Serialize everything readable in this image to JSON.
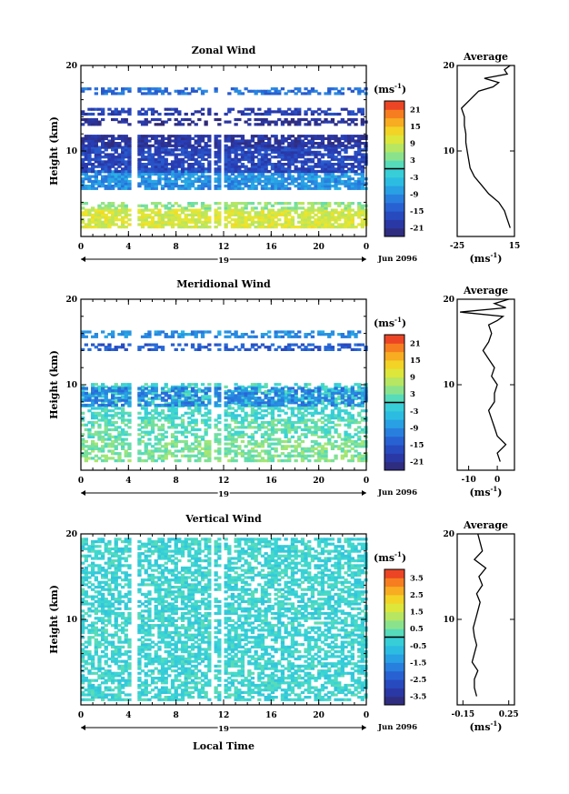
{
  "figure": {
    "xlabel": "Local Time",
    "day_label": "19",
    "month_label": "Jun 2096"
  },
  "chart_data": [
    {
      "type": "heatmap",
      "id": "zonal",
      "title": "Zonal Wind",
      "ylabel": "Height (km)",
      "xlabel": "",
      "x_ticks": [
        "0",
        "4",
        "8",
        "12",
        "16",
        "20",
        "0"
      ],
      "y_ticks": [
        "10",
        "20"
      ],
      "xlim": [
        0,
        24
      ],
      "ylim": [
        0,
        20
      ],
      "colorbar": {
        "unit": "(ms",
        "unit_exp": "-1",
        "unit_close": ")",
        "ticks": [
          "21",
          "15",
          "9",
          "3",
          "-3",
          "-9",
          "-15",
          "-21"
        ],
        "range": [
          -24,
          24
        ]
      },
      "layers": [
        {
          "h0": 1.0,
          "h1": 3.2,
          "value": 10
        },
        {
          "h0": 3.2,
          "h1": 4.0,
          "value": 5
        },
        {
          "h0": 5.5,
          "h1": 7.5,
          "value": -9
        },
        {
          "h0": 7.5,
          "h1": 10.5,
          "value": -17
        },
        {
          "h0": 10.5,
          "h1": 11.8,
          "value": -20
        },
        {
          "h0": 13.0,
          "h1": 13.8,
          "value": -21
        },
        {
          "h0": 14.2,
          "h1": 14.9,
          "value": -18
        },
        {
          "h0": 16.6,
          "h1": 17.3,
          "value": -12
        }
      ],
      "gaps": [
        [
          4.2,
          4.5
        ],
        [
          10.8,
          11.1
        ],
        [
          11.6,
          11.9
        ]
      ],
      "profile": {
        "title": "Average",
        "x_ticks": [
          "-25",
          "15"
        ],
        "xlim": [
          -25,
          15
        ],
        "y_ticks": [
          "10",
          "20"
        ],
        "unit": "(ms",
        "unit_exp": "-1",
        "unit_close": ")",
        "heights": [
          1,
          2,
          3,
          4,
          5,
          6,
          7,
          8,
          9,
          10,
          11,
          12,
          13,
          14,
          15,
          16,
          17,
          17.5,
          18,
          18.5,
          19,
          19.5,
          20
        ],
        "values": [
          12,
          10,
          8,
          4,
          -3,
          -8,
          -13,
          -16,
          -17,
          -18,
          -19,
          -19,
          -20,
          -20,
          -22,
          -16,
          -10,
          0,
          4,
          -6,
          10,
          8,
          12
        ]
      }
    },
    {
      "type": "heatmap",
      "id": "meridional",
      "title": "Meridional Wind",
      "ylabel": "Height (km)",
      "xlabel": "",
      "x_ticks": [
        "0",
        "4",
        "8",
        "12",
        "16",
        "20",
        "0"
      ],
      "y_ticks": [
        "10",
        "20"
      ],
      "xlim": [
        0,
        24
      ],
      "ylim": [
        0,
        20
      ],
      "colorbar": {
        "unit": "(ms",
        "unit_exp": "-1",
        "unit_close": ")",
        "ticks": [
          "21",
          "15",
          "9",
          "3",
          "-3",
          "-9",
          "-15",
          "-21"
        ],
        "range": [
          -24,
          24
        ]
      },
      "layers": [
        {
          "h0": 1.0,
          "h1": 3.5,
          "value": 4
        },
        {
          "h0": 3.5,
          "h1": 6.0,
          "value": 2
        },
        {
          "h0": 6.0,
          "h1": 10.0,
          "value": 0
        },
        {
          "h0": 7.5,
          "h1": 9.5,
          "value": -10
        },
        {
          "h0": 14.0,
          "h1": 14.8,
          "value": -14
        },
        {
          "h0": 15.5,
          "h1": 16.2,
          "value": -9
        }
      ],
      "gaps": [
        [
          4.2,
          4.5
        ],
        [
          10.8,
          11.1
        ],
        [
          11.6,
          11.9
        ]
      ],
      "profile": {
        "title": "Average",
        "x_ticks": [
          "-10",
          "0"
        ],
        "xlim": [
          -14,
          6
        ],
        "y_ticks": [
          "10",
          "20"
        ],
        "unit": "(ms",
        "unit_exp": "-1",
        "unit_close": ")",
        "heights": [
          1,
          2,
          3,
          4,
          5,
          6,
          7,
          8,
          9,
          10,
          11,
          12,
          13,
          14,
          15,
          16,
          17,
          17.5,
          18,
          18.5,
          19,
          19.5,
          20
        ],
        "values": [
          1,
          0,
          3,
          0,
          -1,
          -2,
          -3,
          -1,
          -1,
          0,
          -2,
          -1,
          -3,
          -5,
          -3,
          -2,
          -3,
          0,
          2,
          -13,
          3,
          -1,
          4
        ]
      }
    },
    {
      "type": "heatmap",
      "id": "vertical",
      "title": "Vertical Wind",
      "ylabel": "Height (km)",
      "xlabel": "Local Time",
      "x_ticks": [
        "0",
        "4",
        "8",
        "12",
        "16",
        "20",
        "0"
      ],
      "y_ticks": [
        "10",
        "20"
      ],
      "xlim": [
        0,
        24
      ],
      "ylim": [
        0,
        20
      ],
      "colorbar": {
        "unit": "(ms",
        "unit_exp": "-1",
        "unit_close": ")",
        "ticks": [
          "3.5",
          "2.5",
          "1.5",
          "0.5",
          "-0.5",
          "-1.5",
          "-2.5",
          "-3.5"
        ],
        "range": [
          -4,
          4
        ]
      },
      "layers": [
        {
          "h0": 0.5,
          "h1": 19.5,
          "value": -0.1
        }
      ],
      "gaps": [
        [
          4.2,
          4.5
        ],
        [
          10.8,
          11.1
        ],
        [
          11.6,
          11.9
        ]
      ],
      "profile": {
        "title": "Average",
        "x_ticks": [
          "-0.15",
          "0.25"
        ],
        "xlim": [
          -0.2,
          0.3
        ],
        "y_ticks": [
          "10",
          "20"
        ],
        "unit": "(ms",
        "unit_exp": "-1",
        "unit_close": ")",
        "heights": [
          1,
          2,
          3,
          4,
          5,
          6,
          7,
          8,
          9,
          10,
          11,
          12,
          13,
          14,
          15,
          16,
          17,
          18,
          19,
          20
        ],
        "values": [
          -0.03,
          -0.05,
          -0.05,
          -0.02,
          -0.07,
          -0.05,
          -0.03,
          -0.05,
          -0.06,
          -0.04,
          -0.02,
          0.0,
          -0.03,
          0.02,
          -0.01,
          0.05,
          -0.05,
          0.02,
          0.0,
          -0.02
        ]
      }
    }
  ]
}
